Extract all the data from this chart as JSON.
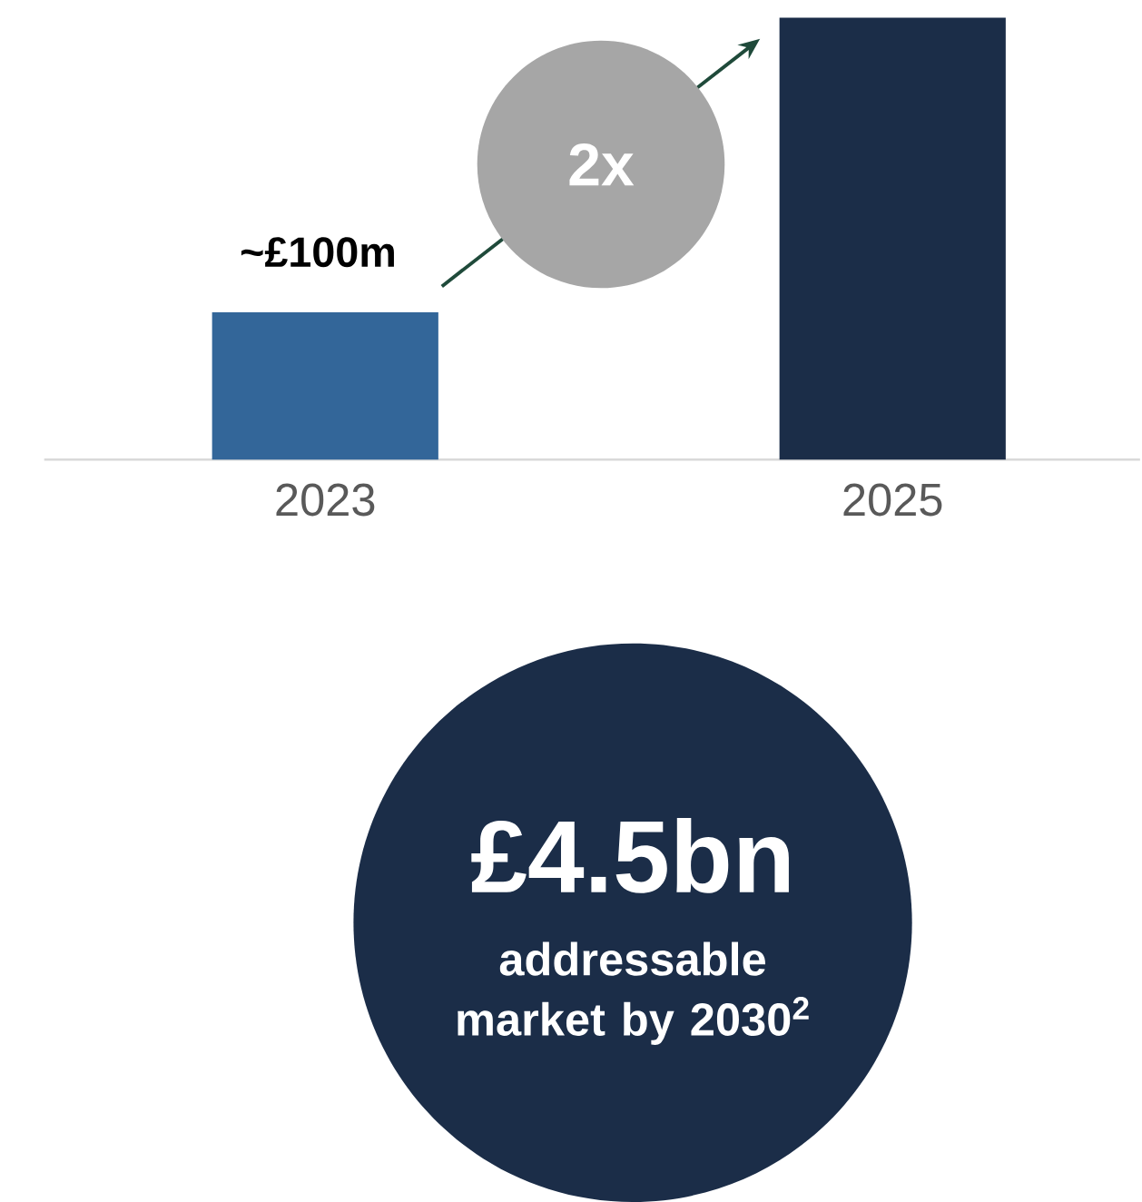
{
  "chart_data": {
    "type": "bar",
    "categories": [
      "2023",
      "2025"
    ],
    "values": [
      100,
      300
    ],
    "ylim": [
      0,
      300
    ],
    "tick_labels": "x",
    "colors": [
      "#336699",
      "#1b2d48"
    ],
    "value_labels": [
      "~£100m",
      null
    ],
    "annotations": [
      "2x",
      "£4.5bn",
      "addressable market by 2030$^{2}$"
    ]
  }
}
